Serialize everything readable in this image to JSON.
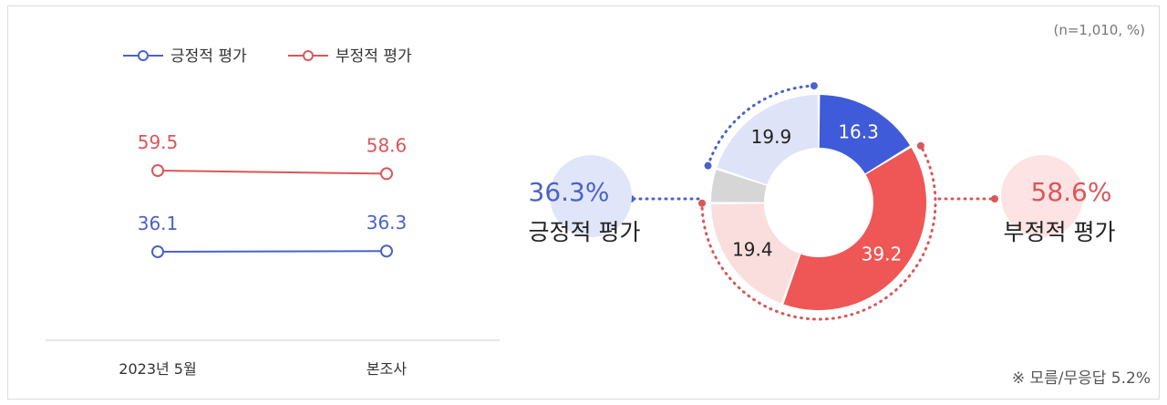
{
  "note_top": "(n=1,010, %)",
  "note_bottom": "※ 모름/무응답 5.2%",
  "chart_data": [
    {
      "type": "line",
      "categories": [
        "2023년 5월",
        "본조사"
      ],
      "series": [
        {
          "name": "긍정적 평가",
          "values": [
            36.1,
            36.3
          ],
          "color": "#4a62c8"
        },
        {
          "name": "부정적 평가",
          "values": [
            59.5,
            58.6
          ],
          "color": "#d9575a"
        }
      ],
      "legend_position": "top-left"
    },
    {
      "type": "pie",
      "style": "donut",
      "segments": [
        {
          "label": "16.3",
          "value": 16.3,
          "color": "#3f5bd9",
          "group": "긍정적 평가",
          "text_color": "#ffffff"
        },
        {
          "label": "39.2",
          "value": 39.2,
          "color": "#ef5656",
          "group": "부정적 평가",
          "text_color": "#ffffff"
        },
        {
          "label": "19.4",
          "value": 19.4,
          "color": "#fadede",
          "group": "부정적 평가",
          "text_color": "#222222"
        },
        {
          "label": "",
          "value": 5.2,
          "color": "#d6d6d6",
          "group": "모름/무응답",
          "text_color": "#222222"
        },
        {
          "label": "19.9",
          "value": 19.9,
          "color": "#dfe3f8",
          "group": "긍정적 평가",
          "text_color": "#222222"
        }
      ],
      "groups": [
        {
          "name": "긍정적 평가",
          "percent": "36.3%",
          "side": "left",
          "color": "#4a62c8",
          "bubble": "#e0e5f9"
        },
        {
          "name": "부정적 평가",
          "percent": "58.6%",
          "side": "right",
          "color": "#d9575a",
          "bubble": "#fde3e3"
        }
      ]
    }
  ]
}
